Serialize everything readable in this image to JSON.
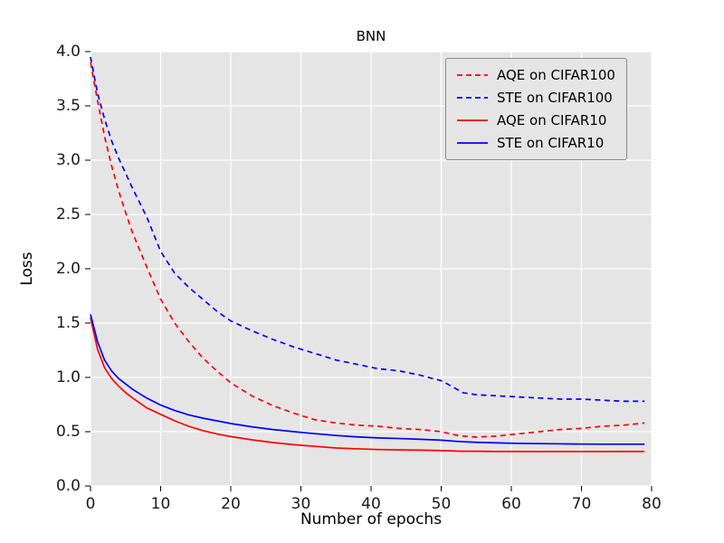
{
  "chart_data": {
    "type": "line",
    "title": "BNN",
    "xlabel": "Number of epochs",
    "ylabel": "Loss",
    "xlim": [
      0,
      80
    ],
    "ylim": [
      0,
      4
    ],
    "xticks": [
      0,
      10,
      20,
      30,
      40,
      50,
      60,
      70,
      80
    ],
    "xtick_labels": [
      "0",
      "10",
      "20",
      "30",
      "40",
      "50",
      "60",
      "70",
      "80"
    ],
    "yticks": [
      0,
      0.5,
      1,
      1.5,
      2,
      2.5,
      3,
      3.5,
      4
    ],
    "ytick_labels": [
      "0.0",
      "0.5",
      "1.0",
      "1.5",
      "2.0",
      "2.5",
      "3.0",
      "3.5",
      "4.0"
    ],
    "grid": true,
    "legend_position": "upper right",
    "plot_background": "#e5e5e5",
    "grid_color": "#ffffff",
    "x": [
      0,
      1,
      2,
      3,
      4,
      5,
      6,
      8,
      10,
      12,
      14,
      16,
      18,
      20,
      23,
      26,
      29,
      32,
      35,
      38,
      41,
      44,
      47,
      50,
      52,
      53,
      55,
      58,
      61,
      64,
      67,
      70,
      73,
      76,
      79
    ],
    "series": [
      {
        "name": "AQE on CIFAR100",
        "color": "#ff0000",
        "style": "dashed",
        "values": [
          3.9,
          3.55,
          3.22,
          2.95,
          2.72,
          2.52,
          2.33,
          2.02,
          1.72,
          1.5,
          1.33,
          1.18,
          1.06,
          0.95,
          0.83,
          0.74,
          0.67,
          0.61,
          0.58,
          0.56,
          0.55,
          0.53,
          0.52,
          0.5,
          0.47,
          0.46,
          0.45,
          0.46,
          0.48,
          0.5,
          0.52,
          0.53,
          0.55,
          0.56,
          0.58
        ]
      },
      {
        "name": "STE on CIFAR100",
        "color": "#0000ff",
        "style": "dashed",
        "values": [
          3.95,
          3.62,
          3.38,
          3.18,
          3.02,
          2.88,
          2.74,
          2.48,
          2.16,
          1.96,
          1.83,
          1.72,
          1.61,
          1.52,
          1.43,
          1.35,
          1.28,
          1.22,
          1.16,
          1.12,
          1.08,
          1.06,
          1.02,
          0.97,
          0.9,
          0.86,
          0.84,
          0.83,
          0.82,
          0.81,
          0.8,
          0.8,
          0.79,
          0.78,
          0.78
        ]
      },
      {
        "name": "AQE on CIFAR10",
        "color": "#ff0000",
        "style": "solid",
        "values": [
          1.55,
          1.26,
          1.09,
          0.99,
          0.92,
          0.86,
          0.81,
          0.72,
          0.66,
          0.6,
          0.55,
          0.51,
          0.48,
          0.455,
          0.425,
          0.4,
          0.38,
          0.365,
          0.35,
          0.342,
          0.336,
          0.332,
          0.33,
          0.326,
          0.322,
          0.32,
          0.32,
          0.318,
          0.318,
          0.317,
          0.317,
          0.317,
          0.317,
          0.318,
          0.318
        ]
      },
      {
        "name": "STE on CIFAR10",
        "color": "#0000ff",
        "style": "solid",
        "values": [
          1.58,
          1.33,
          1.16,
          1.06,
          0.99,
          0.94,
          0.89,
          0.81,
          0.745,
          0.695,
          0.655,
          0.625,
          0.6,
          0.575,
          0.545,
          0.52,
          0.5,
          0.482,
          0.465,
          0.452,
          0.443,
          0.437,
          0.43,
          0.422,
          0.412,
          0.408,
          0.402,
          0.397,
          0.392,
          0.39,
          0.388,
          0.386,
          0.385,
          0.385,
          0.385
        ]
      }
    ]
  }
}
